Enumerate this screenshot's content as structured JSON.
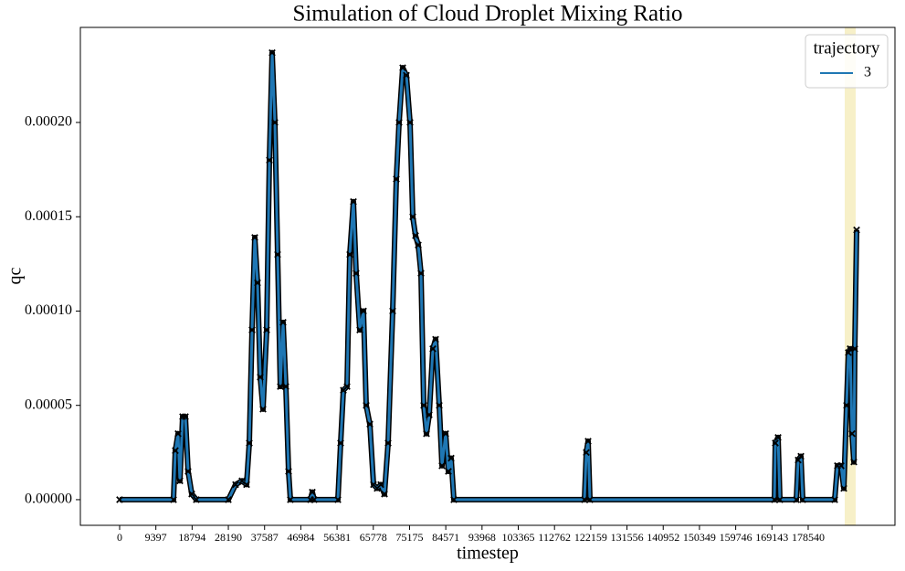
{
  "chart_data": {
    "type": "line",
    "title": "Simulation of Cloud Droplet Mixing Ratio",
    "x_label": "timestep",
    "y_label": "qc",
    "legend_title": "trajectory",
    "legend_position": "upper right",
    "highlight_x": [
      188019,
      190861
    ],
    "highlight_color": "#f7f0c8",
    "marker": "x",
    "marker_color": "#000000",
    "x": [
      0,
      13971,
      14445,
      15155,
      15629,
      16339,
      17050,
      17760,
      18707,
      19891,
      28179,
      30074,
      31731,
      32915,
      33626,
      34336,
      35046,
      35757,
      36467,
      37178,
      38125,
      38835,
      39546,
      40256,
      40966,
      41677,
      42387,
      43098,
      43808,
      44282,
      49491,
      49965,
      50438,
      56595,
      57306,
      58016,
      58963,
      59674,
      60621,
      61331,
      62278,
      63226,
      63936,
      64883,
      65830,
      66778,
      67725,
      68672,
      69619,
      70803,
      71750,
      72461,
      73408,
      74355,
      75302,
      76013,
      76723,
      77434,
      78144,
      78854,
      79565,
      80275,
      81222,
      81933,
      82880,
      83590,
      84538,
      85248,
      85958,
      86669,
      120531,
      121005,
      121478,
      121952,
      169786,
      170022,
      170733,
      171206,
      175469,
      175942,
      176653,
      177126,
      185414,
      186125,
      187072,
      187782,
      188493,
      188966,
      189440,
      189914,
      190387,
      190624,
      191098
    ],
    "series": [
      {
        "name": "3",
        "color": "#1f77b4",
        "values": [
          0,
          0,
          2.6e-05,
          3.5e-05,
          1e-05,
          4.4e-05,
          4.4e-05,
          1.5e-05,
          3e-06,
          0,
          0,
          8e-06,
          1e-05,
          8e-06,
          3e-05,
          9e-05,
          0.000139,
          0.000115,
          6.5e-05,
          4.8e-05,
          9e-05,
          0.00018,
          0.000237,
          0.0002,
          0.00013,
          6e-05,
          9.4e-05,
          6e-05,
          1.5e-05,
          0,
          0,
          4e-06,
          0,
          0,
          3e-05,
          5.8e-05,
          6e-05,
          0.00013,
          0.000158,
          0.00012,
          9e-05,
          0.0001,
          5e-05,
          4e-05,
          8e-06,
          6e-06,
          8e-06,
          3e-06,
          3e-05,
          0.0001,
          0.00017,
          0.0002,
          0.000229,
          0.000225,
          0.0002,
          0.00015,
          0.00014,
          0.000135,
          0.00012,
          5e-05,
          3.5e-05,
          4.5e-05,
          8e-05,
          8.5e-05,
          5e-05,
          1.8e-05,
          3.5e-05,
          1.5e-05,
          2.2e-05,
          0,
          0,
          2.5e-05,
          3.1e-05,
          0,
          0,
          3e-05,
          3.3e-05,
          0,
          0,
          2.1e-05,
          2.3e-05,
          0,
          0,
          1.8e-05,
          1.8e-05,
          6e-06,
          5e-05,
          7.8e-05,
          8e-05,
          3.5e-05,
          2e-05,
          8e-05,
          0.000143
        ]
      }
    ],
    "xlim": [
      -10180,
      201040
    ],
    "ylim": [
      -1.36e-05,
      0.0002504
    ],
    "xticks": [
      0,
      9397,
      18794,
      28190,
      37587,
      46984,
      56381,
      65778,
      75175,
      84571,
      93968,
      103365,
      112762,
      122159,
      131556,
      140952,
      150349,
      159746,
      169143,
      178540
    ],
    "yticks": [
      {
        "value": 0,
        "label": "0.00000"
      },
      {
        "value": 5e-05,
        "label": "0.00005"
      },
      {
        "value": 0.0001,
        "label": "0.00010"
      },
      {
        "value": 0.00015,
        "label": "0.00015"
      },
      {
        "value": 0.0002,
        "label": "0.00020"
      }
    ]
  }
}
